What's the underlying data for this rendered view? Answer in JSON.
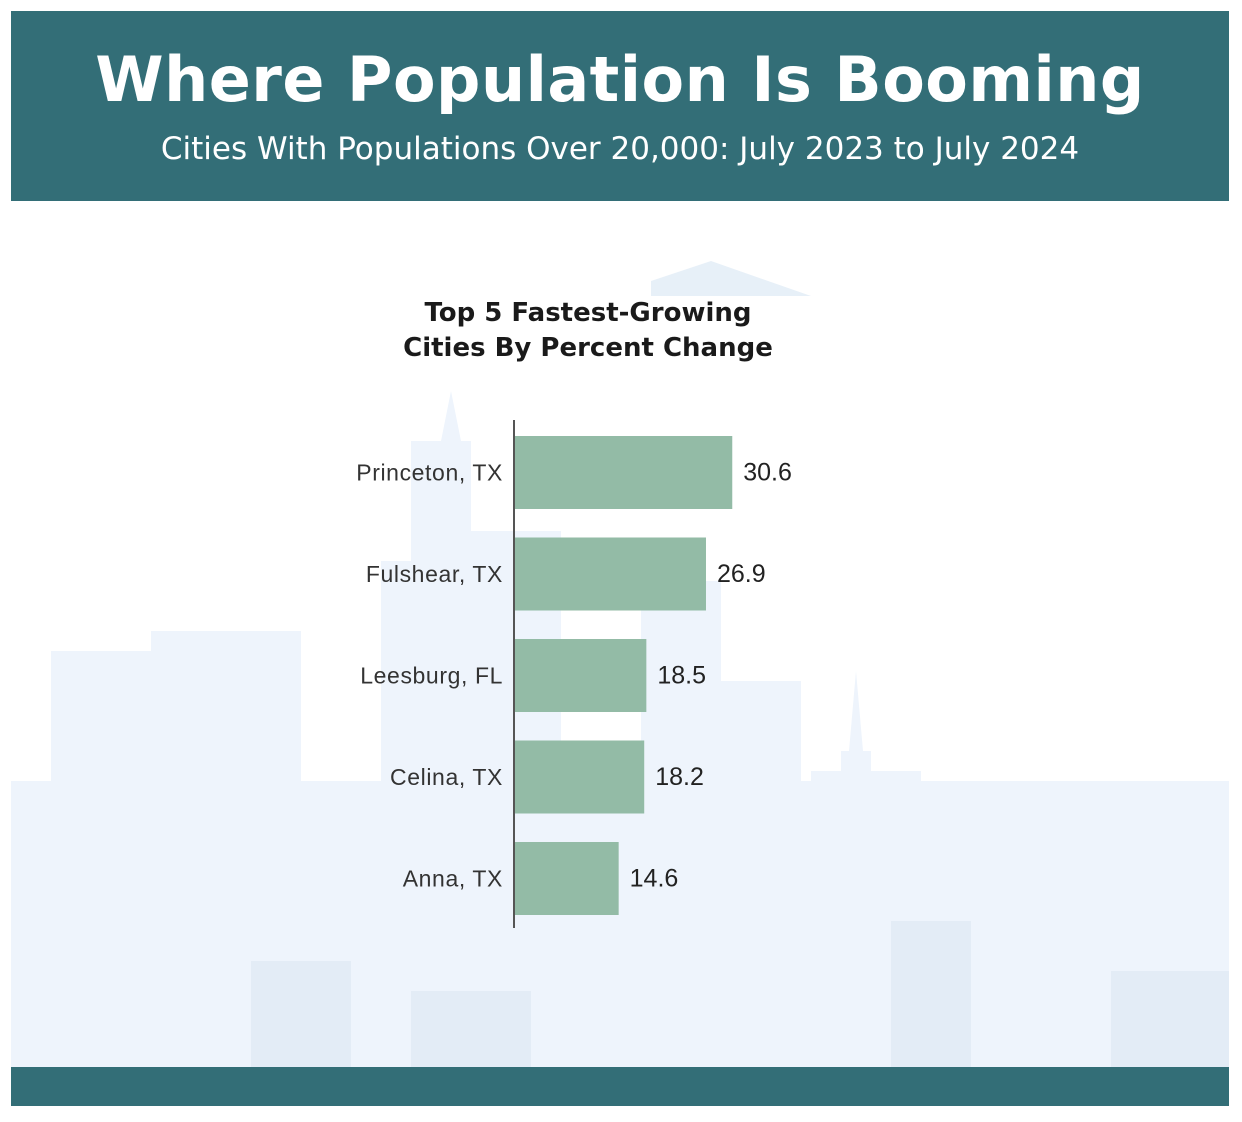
{
  "header": {
    "title": "Where Population Is Booming",
    "subtitle": "Cities With Populations Over 20,000: July 2023 to July 2024"
  },
  "colors": {
    "header_bg": "#336e77",
    "bar": "#93bba6",
    "skyline": "#eef4fc"
  },
  "chart_data": {
    "type": "bar",
    "orientation": "horizontal",
    "title_lines": [
      "Top 5 Fastest-Growing",
      "Cities By Percent Change"
    ],
    "categories": [
      "Princeton, TX",
      "Fulshear, TX",
      "Leesburg, FL",
      "Celina, TX",
      "Anna, TX"
    ],
    "values": [
      30.6,
      26.9,
      18.5,
      18.2,
      14.6
    ],
    "xlim": [
      0,
      31
    ],
    "data_labels": true,
    "grid": false,
    "legend": "none"
  }
}
